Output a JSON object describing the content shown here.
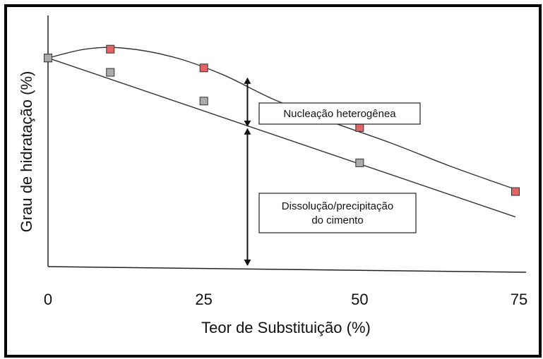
{
  "chart_data": {
    "type": "line",
    "title": "",
    "xlabel": "Teor de Substituição  (%)",
    "ylabel": "Grau de hidratação  (%)",
    "xlim": [
      0,
      75
    ],
    "ylim": [
      0,
      100
    ],
    "x_ticks": [
      "0",
      "25",
      "50",
      "75"
    ],
    "grid": false,
    "series": [
      {
        "key": "upper",
        "color": "#e06666",
        "points": [
          {
            "x": 0,
            "y": 94.5
          },
          {
            "x": 10,
            "y": 98.5
          },
          {
            "x": 25,
            "y": 90
          },
          {
            "x": 50,
            "y": 63
          },
          {
            "x": 75,
            "y": 34
          }
        ],
        "curve": [
          {
            "x": 0,
            "y": 94.5
          },
          {
            "x": 6,
            "y": 98.5
          },
          {
            "x": 12,
            "y": 99.0
          },
          {
            "x": 20,
            "y": 95
          },
          {
            "x": 28,
            "y": 87
          },
          {
            "x": 36,
            "y": 76
          },
          {
            "x": 45,
            "y": 66
          },
          {
            "x": 55,
            "y": 56
          },
          {
            "x": 65,
            "y": 45
          },
          {
            "x": 75,
            "y": 35
          }
        ]
      },
      {
        "key": "lower",
        "color": "#aaaaaa",
        "points": [
          {
            "x": 0,
            "y": 94.5
          },
          {
            "x": 10,
            "y": 88
          },
          {
            "x": 25,
            "y": 75
          },
          {
            "x": 50,
            "y": 47
          }
        ],
        "curve": [
          {
            "x": 0,
            "y": 94.5
          },
          {
            "x": 75,
            "y": 22.5
          }
        ]
      }
    ],
    "annotations": [
      {
        "key": "nucleacao",
        "lines": [
          "Nucleação heterogênea"
        ],
        "arrow": {
          "x": 32,
          "y_from": 63,
          "y_to": 86
        }
      },
      {
        "key": "dissolucao",
        "lines": [
          "Dissolução/precipitação",
          "do cimento"
        ],
        "arrow": {
          "x": 32,
          "y_from": 0,
          "y_to": 63
        }
      }
    ]
  }
}
